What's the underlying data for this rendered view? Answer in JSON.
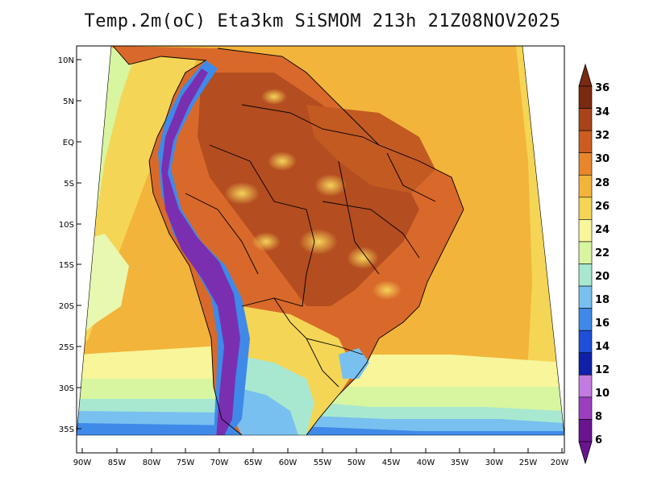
{
  "title": "Temp.2m(oC) Eta3km SiSMOM 213h 21Z08NOV2025",
  "axes": {
    "lat_labels": [
      "10N",
      "5N",
      "EQ",
      "5S",
      "10S",
      "15S",
      "20S",
      "25S",
      "30S",
      "35S"
    ],
    "lon_labels": [
      "90W",
      "85W",
      "80W",
      "75W",
      "70W",
      "65W",
      "60W",
      "55W",
      "50W",
      "45W",
      "40W",
      "35W",
      "30W",
      "25W",
      "20W"
    ]
  },
  "colorbar": {
    "levels": [
      "6",
      "8",
      "10",
      "12",
      "14",
      "16",
      "18",
      "20",
      "22",
      "24",
      "26",
      "28",
      "30",
      "32",
      "34",
      "36"
    ],
    "colors": [
      "#6a1590",
      "#9b3fc0",
      "#c27be0",
      "#1020a8",
      "#1f4fd8",
      "#3f8ae8",
      "#78c0f0",
      "#a8e8d0",
      "#d8f5a0",
      "#f8f59a",
      "#f5d555",
      "#f2b43a",
      "#e8862b",
      "#cc5d20",
      "#a8441a",
      "#7a2a10"
    ]
  },
  "palette": {
    "ocean_warm": "#f2b43a",
    "land_hot": "#d8692a",
    "land_very_hot": "#b44d1f",
    "andes_cold": "#7a2fb0",
    "andes_cool": "#3f8ae8"
  }
}
